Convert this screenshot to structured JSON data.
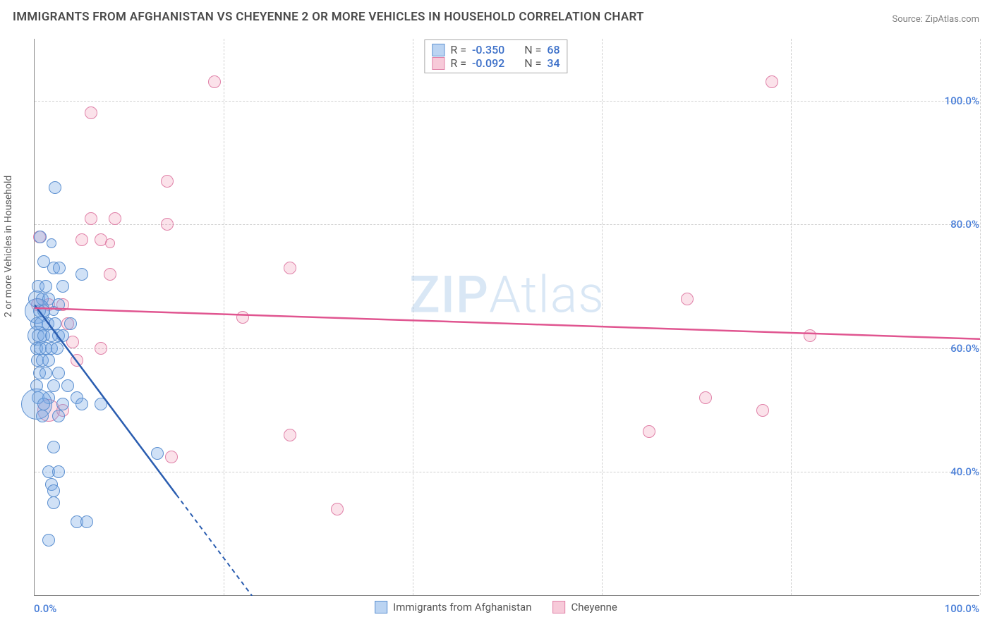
{
  "title": "IMMIGRANTS FROM AFGHANISTAN VS CHEYENNE 2 OR MORE VEHICLES IN HOUSEHOLD CORRELATION CHART",
  "source_prefix": "Source: ",
  "source_name": "ZipAtlas.com",
  "y_axis_label": "2 or more Vehicles in Household",
  "watermark": {
    "bold": "ZIP",
    "thin": "Atlas"
  },
  "chart": {
    "type": "scatter",
    "background_color": "#ffffff",
    "grid_color": "#d0d0d0",
    "axis_color": "#888888",
    "xlim": [
      0,
      100
    ],
    "ylim": [
      20,
      110
    ],
    "y_ticks": [
      {
        "value": 40,
        "label": "40.0%"
      },
      {
        "value": 60,
        "label": "60.0%"
      },
      {
        "value": 80,
        "label": "80.0%"
      },
      {
        "value": 100,
        "label": "100.0%"
      }
    ],
    "x_ticks": [
      {
        "value": 0,
        "label": "0.0%"
      },
      {
        "value": 100,
        "label": "100.0%"
      }
    ],
    "x_gridlines": [
      20,
      40,
      60,
      80,
      100
    ],
    "series": [
      {
        "name": "Immigrants from Afghanistan",
        "color_fill": "rgba(120,170,230,0.35)",
        "color_stroke": "#5b8fd0",
        "class": "blue",
        "marker_radius": 9,
        "R": "-0.350",
        "N": "68",
        "trend": {
          "x1": 0,
          "y1": 67,
          "x2": 23,
          "y2": 20,
          "color": "#2a5db0",
          "dash_after_x": 15
        },
        "points": [
          {
            "x": 2.2,
            "y": 86,
            "r": 9
          },
          {
            "x": 0.6,
            "y": 78,
            "r": 9
          },
          {
            "x": 1.8,
            "y": 77,
            "r": 7
          },
          {
            "x": 1.0,
            "y": 74,
            "r": 9
          },
          {
            "x": 2.0,
            "y": 73,
            "r": 9
          },
          {
            "x": 2.6,
            "y": 73,
            "r": 9
          },
          {
            "x": 5.0,
            "y": 72,
            "r": 9
          },
          {
            "x": 0.4,
            "y": 70,
            "r": 9
          },
          {
            "x": 1.2,
            "y": 70,
            "r": 9
          },
          {
            "x": 3.0,
            "y": 70,
            "r": 9
          },
          {
            "x": 0.2,
            "y": 68,
            "r": 12
          },
          {
            "x": 0.8,
            "y": 68,
            "r": 9
          },
          {
            "x": 1.5,
            "y": 68,
            "r": 9
          },
          {
            "x": 2.5,
            "y": 67,
            "r": 9
          },
          {
            "x": 0.3,
            "y": 66,
            "r": 18
          },
          {
            "x": 0.5,
            "y": 66,
            "r": 9
          },
          {
            "x": 1.0,
            "y": 66,
            "r": 9
          },
          {
            "x": 2.0,
            "y": 66,
            "r": 7
          },
          {
            "x": 0.2,
            "y": 64,
            "r": 9
          },
          {
            "x": 0.8,
            "y": 64,
            "r": 11
          },
          {
            "x": 1.4,
            "y": 64,
            "r": 9
          },
          {
            "x": 2.2,
            "y": 64,
            "r": 9
          },
          {
            "x": 3.8,
            "y": 64,
            "r": 9
          },
          {
            "x": 0.3,
            "y": 62,
            "r": 14
          },
          {
            "x": 0.4,
            "y": 62,
            "r": 9
          },
          {
            "x": 1.0,
            "y": 62,
            "r": 9
          },
          {
            "x": 1.8,
            "y": 62,
            "r": 9
          },
          {
            "x": 2.5,
            "y": 62,
            "r": 9
          },
          {
            "x": 3.0,
            "y": 62,
            "r": 9
          },
          {
            "x": 0.2,
            "y": 60,
            "r": 9
          },
          {
            "x": 0.6,
            "y": 60,
            "r": 9
          },
          {
            "x": 1.2,
            "y": 60,
            "r": 9
          },
          {
            "x": 1.8,
            "y": 60,
            "r": 9
          },
          {
            "x": 2.4,
            "y": 60,
            "r": 9
          },
          {
            "x": 0.3,
            "y": 58,
            "r": 9
          },
          {
            "x": 0.8,
            "y": 58,
            "r": 9
          },
          {
            "x": 1.5,
            "y": 58,
            "r": 9
          },
          {
            "x": 0.5,
            "y": 56,
            "r": 9
          },
          {
            "x": 1.2,
            "y": 56,
            "r": 9
          },
          {
            "x": 2.5,
            "y": 56,
            "r": 9
          },
          {
            "x": 0.2,
            "y": 54,
            "r": 9
          },
          {
            "x": 2.0,
            "y": 54,
            "r": 9
          },
          {
            "x": 3.5,
            "y": 54,
            "r": 9
          },
          {
            "x": 0.4,
            "y": 52,
            "r": 9
          },
          {
            "x": 1.5,
            "y": 52,
            "r": 9
          },
          {
            "x": 4.5,
            "y": 52,
            "r": 9
          },
          {
            "x": 0.2,
            "y": 51,
            "r": 22
          },
          {
            "x": 1.0,
            "y": 51,
            "r": 9
          },
          {
            "x": 3.0,
            "y": 51,
            "r": 9
          },
          {
            "x": 5.0,
            "y": 51,
            "r": 9
          },
          {
            "x": 7.0,
            "y": 51,
            "r": 9
          },
          {
            "x": 0.8,
            "y": 49,
            "r": 9
          },
          {
            "x": 2.5,
            "y": 49,
            "r": 9
          },
          {
            "x": 2.0,
            "y": 44,
            "r": 9
          },
          {
            "x": 13.0,
            "y": 43,
            "r": 9
          },
          {
            "x": 1.5,
            "y": 40,
            "r": 9
          },
          {
            "x": 2.5,
            "y": 40,
            "r": 9
          },
          {
            "x": 1.8,
            "y": 38,
            "r": 9
          },
          {
            "x": 2.0,
            "y": 37,
            "r": 9
          },
          {
            "x": 2.0,
            "y": 35,
            "r": 9
          },
          {
            "x": 4.5,
            "y": 32,
            "r": 9
          },
          {
            "x": 5.5,
            "y": 32,
            "r": 9
          },
          {
            "x": 1.5,
            "y": 29,
            "r": 9
          }
        ]
      },
      {
        "name": "Cheyenne",
        "color_fill": "rgba(240,150,180,0.28)",
        "color_stroke": "#e081a8",
        "class": "pink",
        "marker_radius": 9,
        "R": "-0.092",
        "N": "34",
        "trend": {
          "x1": 0,
          "y1": 66.5,
          "x2": 100,
          "y2": 61.5,
          "color": "#e05590",
          "dash_after_x": 100
        },
        "points": [
          {
            "x": 19,
            "y": 103,
            "r": 9
          },
          {
            "x": 78,
            "y": 103,
            "r": 9
          },
          {
            "x": 6,
            "y": 98,
            "r": 9
          },
          {
            "x": 14,
            "y": 87,
            "r": 9
          },
          {
            "x": 6,
            "y": 81,
            "r": 9
          },
          {
            "x": 8.5,
            "y": 81,
            "r": 9
          },
          {
            "x": 14,
            "y": 80,
            "r": 9
          },
          {
            "x": 0.5,
            "y": 78,
            "r": 9
          },
          {
            "x": 5,
            "y": 77.5,
            "r": 9
          },
          {
            "x": 7,
            "y": 77.5,
            "r": 9
          },
          {
            "x": 8,
            "y": 77,
            "r": 7
          },
          {
            "x": 27,
            "y": 73,
            "r": 9
          },
          {
            "x": 8,
            "y": 72,
            "r": 9
          },
          {
            "x": 69,
            "y": 68,
            "r": 9
          },
          {
            "x": 0.3,
            "y": 67,
            "r": 9
          },
          {
            "x": 1.5,
            "y": 67,
            "r": 9
          },
          {
            "x": 3,
            "y": 67,
            "r": 9
          },
          {
            "x": 3.5,
            "y": 64,
            "r": 9
          },
          {
            "x": 22,
            "y": 65,
            "r": 9
          },
          {
            "x": 82,
            "y": 62,
            "r": 9
          },
          {
            "x": 4,
            "y": 61,
            "r": 9
          },
          {
            "x": 7,
            "y": 60,
            "r": 9
          },
          {
            "x": 4.5,
            "y": 58,
            "r": 9
          },
          {
            "x": 71,
            "y": 52,
            "r": 9
          },
          {
            "x": 1.5,
            "y": 50,
            "r": 16
          },
          {
            "x": 3,
            "y": 50,
            "r": 9
          },
          {
            "x": 77,
            "y": 50,
            "r": 9
          },
          {
            "x": 65,
            "y": 46.5,
            "r": 9
          },
          {
            "x": 27,
            "y": 46,
            "r": 9
          },
          {
            "x": 14.5,
            "y": 42.5,
            "r": 9
          },
          {
            "x": 32,
            "y": 34,
            "r": 9
          }
        ]
      }
    ]
  },
  "legend_top": {
    "R_label": "R =",
    "N_label": "N ="
  },
  "legend_bottom_colors": {
    "blue_fill": "rgba(120,170,230,0.5)",
    "pink_fill": "rgba(240,150,180,0.5)"
  }
}
